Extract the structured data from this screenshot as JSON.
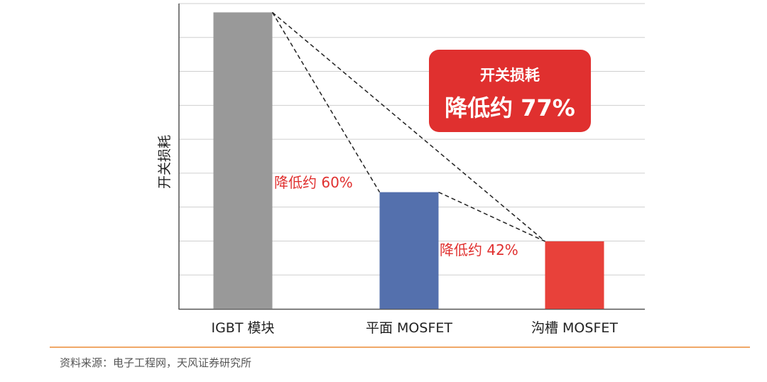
{
  "chart_data": {
    "type": "bar",
    "title": "",
    "xlabel": "",
    "ylabel": "开关损耗",
    "categories": [
      "IGBT 模块",
      "平面 MOSFET",
      "沟槽 MOSFET"
    ],
    "values": [
      8.74,
      3.44,
      1.99
    ],
    "colors": [
      "#999999",
      "#5470ad",
      "#e8413a"
    ],
    "ylim": [
      0,
      9
    ],
    "grid": true,
    "y_tick_labels": false,
    "annotations": [
      {
        "text": "降低约 60%",
        "from": "IGBT 模块",
        "to": "平面 MOSFET"
      },
      {
        "text": "降低约 42%",
        "from": "平面 MOSFET",
        "to": "沟槽 MOSFET"
      }
    ],
    "callout": {
      "line1": "开关损耗",
      "line2": "降低约 77%",
      "from": "IGBT 模块",
      "to": "沟槽 MOSFET",
      "color": "#e0302f"
    }
  },
  "source": "资料来源：电子工程网，天风证券研究所"
}
